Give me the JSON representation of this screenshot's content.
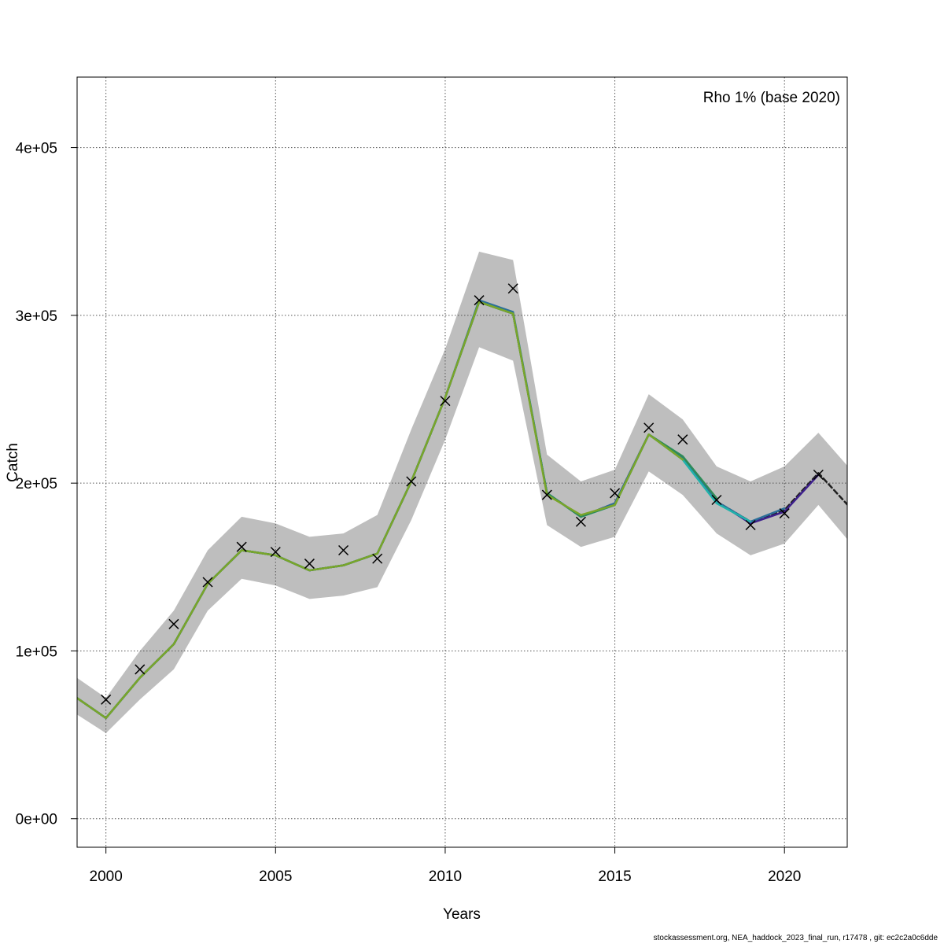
{
  "chart_data": {
    "type": "line",
    "xlabel": "Years",
    "ylabel": "Catch",
    "xlim": [
      1999.15,
      2021.85
    ],
    "ylim": [
      -17000,
      442000
    ],
    "x_ticks": [
      2000,
      2005,
      2010,
      2015,
      2020
    ],
    "x_tick_labels": [
      "2000",
      "2005",
      "2010",
      "2015",
      "2020"
    ],
    "y_ticks": [
      0,
      100000,
      200000,
      300000,
      400000
    ],
    "y_tick_labels": [
      "0e+00",
      "1e+05",
      "2e+05",
      "3e+05",
      "4e+05"
    ],
    "grid": true,
    "legend_text": "Rho 1% (base 2020)",
    "legend_position": "top-right",
    "confidence_band": {
      "x": [
        1999,
        2000,
        2001,
        2002,
        2003,
        2004,
        2005,
        2006,
        2007,
        2008,
        2009,
        2010,
        2011,
        2012,
        2013,
        2014,
        2015,
        2016,
        2017,
        2018,
        2019,
        2020,
        2021,
        2022
      ],
      "lower": [
        64000,
        51000,
        71000,
        89000,
        124000,
        143000,
        139000,
        131000,
        133000,
        138000,
        178000,
        226000,
        281000,
        273000,
        175000,
        162000,
        168000,
        207000,
        193000,
        170000,
        157000,
        164000,
        187000,
        163000
      ],
      "upper": [
        86000,
        72000,
        100000,
        124000,
        160000,
        180000,
        176000,
        168000,
        170000,
        181000,
        232000,
        280000,
        338000,
        333000,
        217000,
        201000,
        208000,
        253000,
        238000,
        210000,
        201000,
        210000,
        230000,
        207000
      ],
      "color": "#bebebe"
    },
    "observed": {
      "x": [
        2000,
        2001,
        2002,
        2003,
        2004,
        2005,
        2006,
        2007,
        2008,
        2009,
        2010,
        2011,
        2012,
        2013,
        2014,
        2015,
        2016,
        2017,
        2018,
        2019,
        2020,
        2021
      ],
      "y": [
        71000,
        89000,
        116000,
        141000,
        162000,
        159000,
        152000,
        160000,
        155000,
        201000,
        249000,
        309000,
        316000,
        193000,
        177000,
        194000,
        233000,
        226000,
        190000,
        175000,
        182000,
        205000
      ],
      "marker": "x"
    },
    "series": [
      {
        "color": "#1f1f1f",
        "dashed": true,
        "x": [
          1999,
          2000,
          2001,
          2002,
          2003,
          2004,
          2005,
          2006,
          2007,
          2008,
          2009,
          2010,
          2011,
          2012,
          2013,
          2014,
          2015,
          2016,
          2017,
          2018,
          2019,
          2020,
          2021,
          2022
        ],
        "y": [
          74000,
          60000,
          84000,
          104000,
          140000,
          160000,
          157000,
          148000,
          151000,
          158000,
          201000,
          251000,
          308000,
          301000,
          194000,
          180000,
          188000,
          229000,
          215000,
          189000,
          177000,
          184000,
          206000,
          184000
        ]
      },
      {
        "color": "#3d1f8c",
        "dashed": false,
        "x": [
          1999,
          2000,
          2001,
          2002,
          2003,
          2004,
          2005,
          2006,
          2007,
          2008,
          2009,
          2010,
          2011,
          2012,
          2013,
          2014,
          2015,
          2016,
          2017,
          2018,
          2019,
          2020,
          2021
        ],
        "y": [
          74000,
          60000,
          84000,
          104000,
          140000,
          160000,
          157000,
          148000,
          151000,
          158000,
          201000,
          251000,
          308000,
          301000,
          194000,
          180000,
          188000,
          229000,
          215000,
          189000,
          176000,
          183000,
          205000
        ]
      },
      {
        "color": "#2c6f99",
        "dashed": false,
        "x": [
          1999,
          2000,
          2001,
          2002,
          2003,
          2004,
          2005,
          2006,
          2007,
          2008,
          2009,
          2010,
          2011,
          2012,
          2013,
          2014,
          2015,
          2016,
          2017,
          2018,
          2019,
          2020
        ],
        "y": [
          74000,
          60000,
          84000,
          104000,
          140000,
          160000,
          157000,
          148000,
          151000,
          158000,
          201000,
          251000,
          309000,
          302000,
          194000,
          180000,
          188000,
          229000,
          215000,
          189000,
          177000,
          185000
        ]
      },
      {
        "color": "#20b2aa",
        "dashed": false,
        "x": [
          1999,
          2000,
          2001,
          2002,
          2003,
          2004,
          2005,
          2006,
          2007,
          2008,
          2009,
          2010,
          2011,
          2012,
          2013,
          2014,
          2015,
          2016,
          2017,
          2018,
          2019
        ],
        "y": [
          74000,
          60000,
          84000,
          104000,
          140000,
          160000,
          157000,
          148000,
          151000,
          158000,
          201000,
          251000,
          308000,
          301000,
          194000,
          180000,
          187000,
          229000,
          214000,
          188000,
          177000
        ]
      },
      {
        "color": "#2e8b57",
        "dashed": false,
        "x": [
          1999,
          2000,
          2001,
          2002,
          2003,
          2004,
          2005,
          2006,
          2007,
          2008,
          2009,
          2010,
          2011,
          2012,
          2013,
          2014,
          2015,
          2016,
          2017,
          2018
        ],
        "y": [
          74000,
          60000,
          84000,
          104000,
          140000,
          160000,
          157000,
          148000,
          151000,
          158000,
          201000,
          251000,
          308000,
          301000,
          194000,
          180000,
          187000,
          229000,
          216000,
          191000
        ]
      },
      {
        "color": "#7aa52a",
        "dashed": false,
        "x": [
          1999,
          2000,
          2001,
          2002,
          2003,
          2004,
          2005,
          2006,
          2007,
          2008,
          2009,
          2010,
          2011,
          2012,
          2013,
          2014,
          2015,
          2016,
          2017
        ],
        "y": [
          74000,
          60000,
          84000,
          104000,
          140000,
          160000,
          157000,
          148000,
          151000,
          158000,
          201000,
          251000,
          308000,
          301000,
          193000,
          181000,
          187000,
          229000,
          214000
        ]
      }
    ]
  },
  "footer": {
    "text": "stockassessment.org, NEA_haddock_2023_final_run, r17478 , git: ec2c2a0c6dde"
  }
}
